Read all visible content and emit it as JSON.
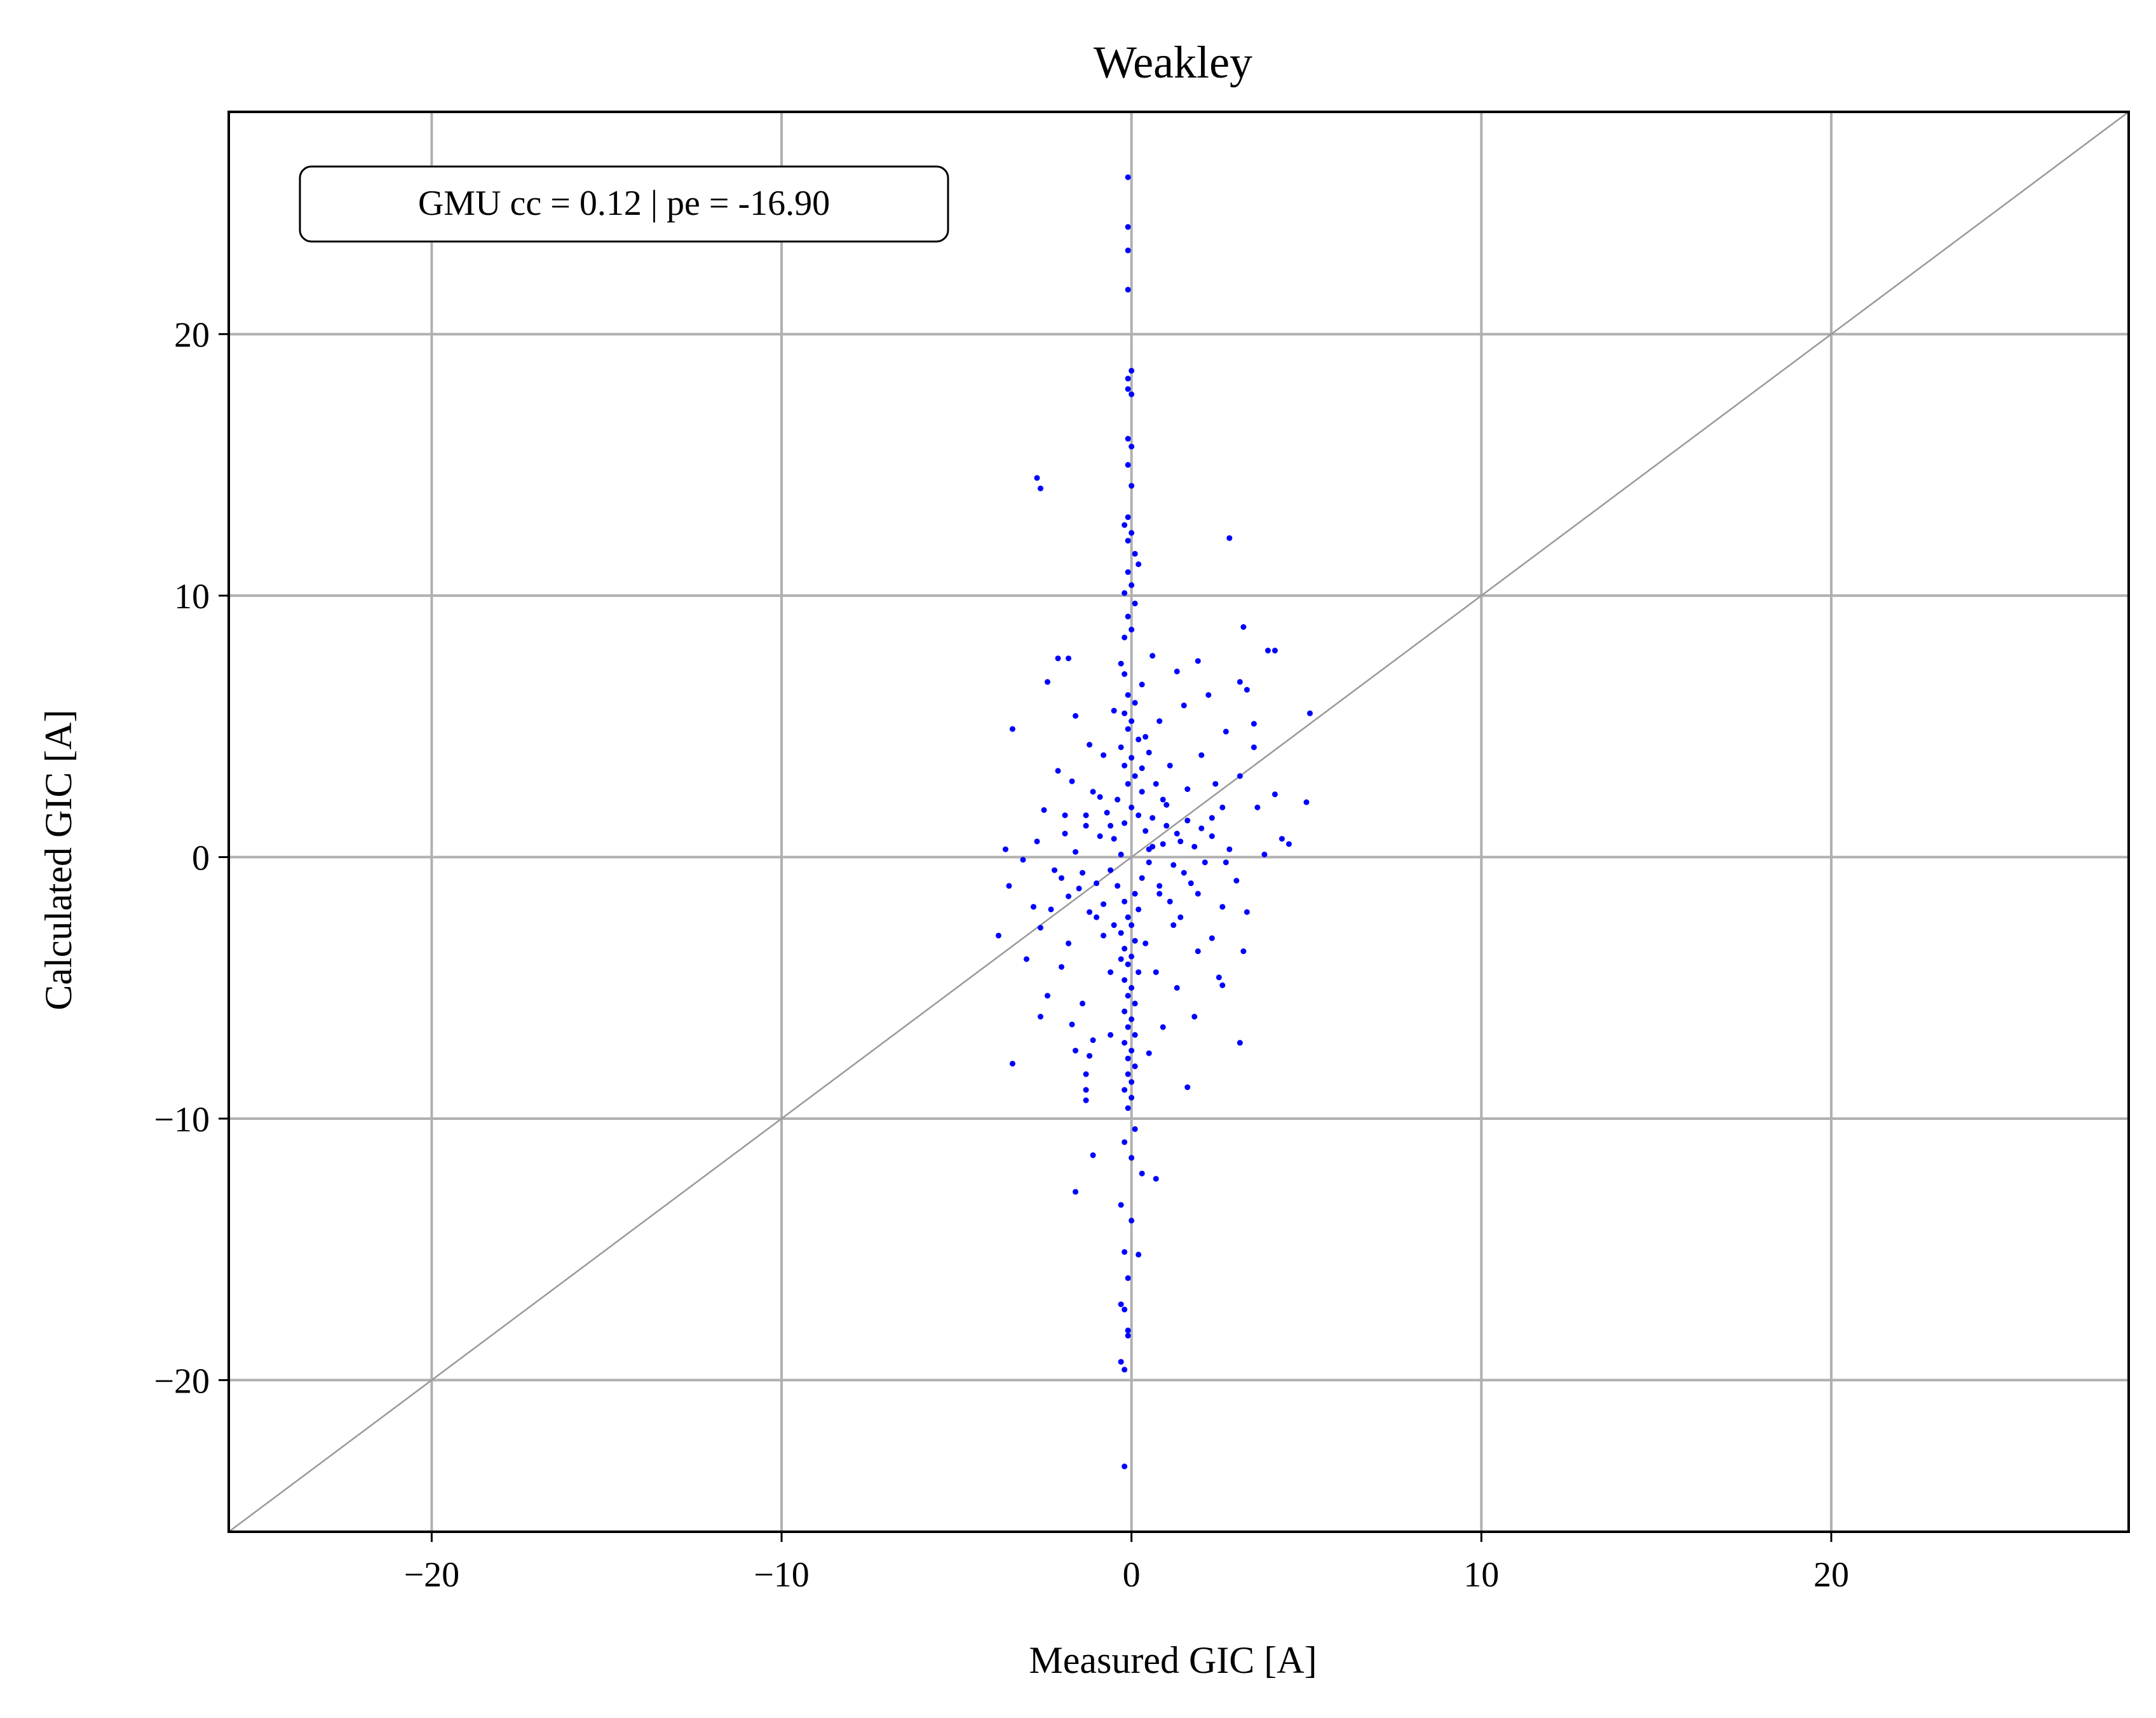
{
  "chart_data": {
    "type": "scatter",
    "title": "Weakley",
    "xlabel": "Measured GIC [A]",
    "ylabel": "Calculated GIC [A]",
    "xlim": [
      -25.8,
      28.5
    ],
    "ylim": [
      -25.8,
      28.5
    ],
    "xticks": [
      -20,
      -10,
      0,
      10,
      20
    ],
    "yticks": [
      -20,
      -10,
      0,
      10,
      20
    ],
    "xtick_labels": [
      "−20",
      "−10",
      "0",
      "10",
      "20"
    ],
    "ytick_labels": [
      "−20",
      "−10",
      "0",
      "10",
      "20"
    ],
    "grid": true,
    "reference_line": "y = x",
    "annotation": "GMU cc = 0.12 | pe = -16.90",
    "colors": {
      "points": "#0000ff",
      "grid": "#b0b0b0",
      "reference_line": "#999999"
    },
    "series": [
      {
        "points": [
          [
            -0.1,
            26.0
          ],
          [
            -0.1,
            24.1
          ],
          [
            -0.1,
            23.2
          ],
          [
            -0.1,
            21.7
          ],
          [
            0.0,
            18.6
          ],
          [
            -0.1,
            18.3
          ],
          [
            -0.1,
            17.9
          ],
          [
            0.0,
            17.7
          ],
          [
            -0.1,
            16.0
          ],
          [
            0.0,
            15.7
          ],
          [
            -0.1,
            15.0
          ],
          [
            0.0,
            14.2
          ],
          [
            -2.7,
            14.5
          ],
          [
            -2.6,
            14.1
          ],
          [
            2.8,
            12.2
          ],
          [
            -0.1,
            13.0
          ],
          [
            -0.2,
            12.7
          ],
          [
            0.0,
            12.4
          ],
          [
            -0.1,
            12.1
          ],
          [
            0.1,
            11.6
          ],
          [
            0.2,
            11.2
          ],
          [
            -0.1,
            10.9
          ],
          [
            0.0,
            10.4
          ],
          [
            -0.2,
            10.1
          ],
          [
            0.1,
            9.7
          ],
          [
            3.2,
            8.8
          ],
          [
            -0.1,
            9.2
          ],
          [
            0.0,
            8.7
          ],
          [
            -0.2,
            8.4
          ],
          [
            3.9,
            7.9
          ],
          [
            4.1,
            7.9
          ],
          [
            -1.8,
            7.6
          ],
          [
            -2.1,
            7.6
          ],
          [
            0.6,
            7.7
          ],
          [
            -0.3,
            7.4
          ],
          [
            1.9,
            7.5
          ],
          [
            3.1,
            6.7
          ],
          [
            1.3,
            7.1
          ],
          [
            -2.4,
            6.7
          ],
          [
            -0.2,
            7.0
          ],
          [
            3.3,
            6.4
          ],
          [
            0.3,
            6.6
          ],
          [
            2.2,
            6.2
          ],
          [
            -3.4,
            4.9
          ],
          [
            5.1,
            5.5
          ],
          [
            0.8,
            5.2
          ],
          [
            3.5,
            5.1
          ],
          [
            -1.6,
            5.4
          ],
          [
            1.5,
            5.8
          ],
          [
            -0.5,
            5.6
          ],
          [
            2.7,
            4.8
          ],
          [
            -1.2,
            4.3
          ],
          [
            0.4,
            4.6
          ],
          [
            3.5,
            4.2
          ],
          [
            2.0,
            3.9
          ],
          [
            -2.1,
            3.3
          ],
          [
            1.1,
            3.5
          ],
          [
            -0.8,
            3.9
          ],
          [
            3.1,
            3.1
          ],
          [
            2.4,
            2.8
          ],
          [
            -1.7,
            2.9
          ],
          [
            4.1,
            2.4
          ],
          [
            5.0,
            2.1
          ],
          [
            1.6,
            2.6
          ],
          [
            -0.9,
            2.3
          ],
          [
            3.6,
            1.9
          ],
          [
            -2.5,
            1.8
          ],
          [
            2.3,
            1.5
          ],
          [
            -1.3,
            1.6
          ],
          [
            1.0,
            2.0
          ],
          [
            4.3,
            0.7
          ],
          [
            4.5,
            0.5
          ],
          [
            -3.6,
            0.3
          ],
          [
            -1.9,
            0.9
          ],
          [
            3.8,
            0.1
          ],
          [
            2.7,
            -0.2
          ],
          [
            1.4,
            0.6
          ],
          [
            -0.6,
            1.2
          ],
          [
            0.5,
            0.3
          ],
          [
            -3.1,
            -0.1
          ],
          [
            -2.2,
            -0.5
          ],
          [
            3.0,
            -0.9
          ],
          [
            1.7,
            -1.0
          ],
          [
            -1.5,
            -1.2
          ],
          [
            0.8,
            -1.4
          ],
          [
            -3.5,
            -1.1
          ],
          [
            -2.8,
            -1.9
          ],
          [
            2.6,
            -1.9
          ],
          [
            3.3,
            -2.1
          ],
          [
            -1.0,
            -2.3
          ],
          [
            1.2,
            -2.6
          ],
          [
            -3.8,
            -3.0
          ],
          [
            -2.6,
            -2.7
          ],
          [
            2.3,
            -3.1
          ],
          [
            -1.8,
            -3.3
          ],
          [
            1.9,
            -3.6
          ],
          [
            3.2,
            -3.6
          ],
          [
            -3.0,
            -3.9
          ],
          [
            -2.0,
            -4.2
          ],
          [
            0.7,
            -4.4
          ],
          [
            2.5,
            -4.6
          ],
          [
            -2.4,
            -5.3
          ],
          [
            1.3,
            -5.0
          ],
          [
            -1.4,
            -5.6
          ],
          [
            2.6,
            -4.9
          ],
          [
            -2.6,
            -6.1
          ],
          [
            1.8,
            -6.1
          ],
          [
            -1.7,
            -6.4
          ],
          [
            0.9,
            -6.5
          ],
          [
            -1.1,
            -7.0
          ],
          [
            3.1,
            -7.1
          ],
          [
            -0.6,
            -6.8
          ],
          [
            -3.4,
            -7.9
          ],
          [
            -1.6,
            -7.4
          ],
          [
            -1.2,
            -7.6
          ],
          [
            0.5,
            -7.5
          ],
          [
            -1.3,
            -8.3
          ],
          [
            1.6,
            -8.8
          ],
          [
            -1.3,
            -8.9
          ],
          [
            -1.3,
            -9.3
          ],
          [
            -0.1,
            -9.6
          ],
          [
            0.1,
            -10.4
          ],
          [
            -0.2,
            -10.9
          ],
          [
            0.0,
            -11.5
          ],
          [
            -1.1,
            -11.4
          ],
          [
            0.3,
            -12.1
          ],
          [
            0.7,
            -12.3
          ],
          [
            -1.6,
            -12.8
          ],
          [
            -0.3,
            -13.3
          ],
          [
            0.0,
            -13.9
          ],
          [
            -0.2,
            -15.1
          ],
          [
            0.2,
            -15.2
          ],
          [
            -0.1,
            -16.1
          ],
          [
            -0.3,
            -17.1
          ],
          [
            -0.2,
            -17.3
          ],
          [
            -0.1,
            -18.1
          ],
          [
            -0.1,
            -18.3
          ],
          [
            -0.3,
            -19.3
          ],
          [
            -0.2,
            -19.6
          ],
          [
            -0.2,
            -23.3
          ],
          [
            -0.1,
            6.2
          ],
          [
            0.1,
            5.9
          ],
          [
            -0.2,
            5.5
          ],
          [
            0.0,
            5.2
          ],
          [
            -0.1,
            4.9
          ],
          [
            0.2,
            4.5
          ],
          [
            -0.3,
            4.2
          ],
          [
            0.0,
            3.8
          ],
          [
            -0.2,
            3.5
          ],
          [
            0.1,
            3.1
          ],
          [
            -0.1,
            2.8
          ],
          [
            0.3,
            2.5
          ],
          [
            -0.4,
            2.2
          ],
          [
            0.0,
            1.9
          ],
          [
            0.2,
            1.6
          ],
          [
            -0.2,
            1.3
          ],
          [
            0.4,
            1.0
          ],
          [
            -0.5,
            0.7
          ],
          [
            0.6,
            0.4
          ],
          [
            -0.3,
            0.1
          ],
          [
            0.5,
            -0.2
          ],
          [
            -0.6,
            -0.5
          ],
          [
            0.3,
            -0.8
          ],
          [
            -0.4,
            -1.1
          ],
          [
            0.1,
            -1.4
          ],
          [
            -0.2,
            -1.7
          ],
          [
            0.2,
            -2.0
          ],
          [
            -0.1,
            -2.3
          ],
          [
            0.0,
            -2.6
          ],
          [
            -0.3,
            -2.9
          ],
          [
            0.1,
            -3.2
          ],
          [
            -0.2,
            -3.5
          ],
          [
            0.0,
            -3.8
          ],
          [
            -0.1,
            -4.1
          ],
          [
            0.2,
            -4.4
          ],
          [
            -0.2,
            -4.7
          ],
          [
            0.0,
            -5.0
          ],
          [
            -0.1,
            -5.3
          ],
          [
            0.1,
            -5.6
          ],
          [
            -0.2,
            -5.9
          ],
          [
            0.0,
            -6.2
          ],
          [
            -0.1,
            -6.5
          ],
          [
            0.1,
            -6.8
          ],
          [
            -0.2,
            -7.1
          ],
          [
            0.0,
            -7.4
          ],
          [
            -0.1,
            -7.7
          ],
          [
            0.1,
            -8.0
          ],
          [
            -0.1,
            -8.3
          ],
          [
            0.0,
            -8.6
          ],
          [
            -0.2,
            -8.9
          ],
          [
            0.0,
            -9.2
          ],
          [
            1.0,
            1.2
          ],
          [
            1.3,
            0.9
          ],
          [
            1.6,
            1.4
          ],
          [
            2.0,
            1.1
          ],
          [
            1.8,
            0.4
          ],
          [
            2.3,
            0.8
          ],
          [
            1.2,
            -0.3
          ],
          [
            0.9,
            0.5
          ],
          [
            1.5,
            -0.6
          ],
          [
            2.1,
            -0.2
          ],
          [
            -1.0,
            -1.0
          ],
          [
            -1.4,
            -0.6
          ],
          [
            -1.8,
            -1.5
          ],
          [
            -0.8,
            -1.8
          ],
          [
            -1.2,
            -2.1
          ],
          [
            -1.6,
            0.2
          ],
          [
            -2.0,
            -0.8
          ],
          [
            -0.9,
            0.8
          ],
          [
            -1.3,
            1.2
          ],
          [
            -0.7,
            1.7
          ],
          [
            0.8,
            -1.1
          ],
          [
            1.1,
            -1.7
          ],
          [
            0.6,
            1.5
          ],
          [
            0.9,
            2.2
          ],
          [
            -0.5,
            -2.6
          ],
          [
            -0.8,
            -3.0
          ],
          [
            0.7,
            2.8
          ],
          [
            0.4,
            -3.3
          ],
          [
            -1.1,
            2.5
          ],
          [
            1.4,
            -2.3
          ],
          [
            2.6,
            1.9
          ],
          [
            -2.3,
            -2.0
          ],
          [
            2.8,
            0.3
          ],
          [
            -2.7,
            0.6
          ],
          [
            0.3,
            3.4
          ],
          [
            -0.3,
            -3.9
          ],
          [
            1.9,
            -1.4
          ],
          [
            -1.9,
            1.6
          ],
          [
            0.5,
            4.0
          ],
          [
            -0.6,
            -4.4
          ]
        ]
      }
    ]
  }
}
